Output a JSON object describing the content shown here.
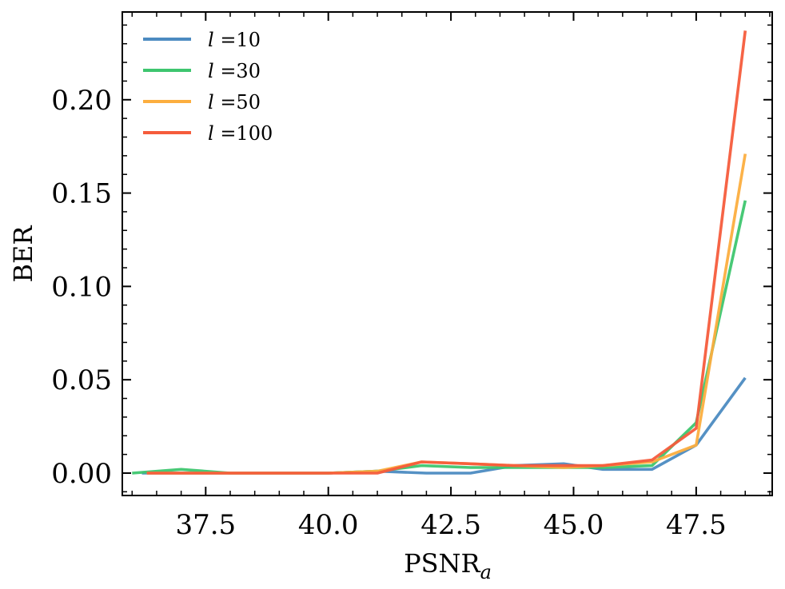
{
  "chart_data": {
    "type": "line",
    "xlabel_base": "PSNR",
    "xlabel_sub": "a",
    "ylabel": "BER",
    "xlim": [
      35.8,
      49.05
    ],
    "ylim": [
      -0.012,
      0.247
    ],
    "xticks": [
      37.5,
      40.0,
      42.5,
      45.0,
      47.5
    ],
    "xtick_labels": [
      "37.5",
      "40.0",
      "42.5",
      "45.0",
      "47.5"
    ],
    "yticks": [
      0.0,
      0.05,
      0.1,
      0.15,
      0.2
    ],
    "ytick_labels": [
      "0.00",
      "0.05",
      "0.10",
      "0.15",
      "0.20"
    ],
    "legend_position": "upper-left",
    "grid": false,
    "series": [
      {
        "name": "l =10",
        "name_var": "l",
        "name_rest": " =10",
        "color": "#4c8bc1",
        "x": [
          36.2,
          37.0,
          38.0,
          39.0,
          40.0,
          41.0,
          42.0,
          42.9,
          43.8,
          44.8,
          45.6,
          46.6,
          47.5,
          48.5
        ],
        "y": [
          0.0,
          0.0,
          0.0,
          0.0,
          0.0,
          0.001,
          0.0,
          0.0,
          0.004,
          0.005,
          0.002,
          0.002,
          0.015,
          0.051
        ]
      },
      {
        "name": "l =30",
        "name_var": "l",
        "name_rest": " =30",
        "color": "#3ec66f",
        "x": [
          36.0,
          37.0,
          38.0,
          39.0,
          40.0,
          41.0,
          41.9,
          42.9,
          43.8,
          44.8,
          45.6,
          46.6,
          47.5,
          48.5
        ],
        "y": [
          0.0,
          0.002,
          0.0,
          0.0,
          0.0,
          0.001,
          0.004,
          0.003,
          0.003,
          0.003,
          0.003,
          0.004,
          0.027,
          0.146
        ]
      },
      {
        "name": "l =50",
        "name_var": "l",
        "name_rest": " =50",
        "color": "#fcae3f",
        "x": [
          36.3,
          37.0,
          38.0,
          39.0,
          40.0,
          41.0,
          41.9,
          42.9,
          43.8,
          44.8,
          45.6,
          46.6,
          47.5,
          48.5
        ],
        "y": [
          0.0,
          0.0,
          0.0,
          0.0,
          0.0,
          0.001,
          0.006,
          0.005,
          0.004,
          0.003,
          0.004,
          0.006,
          0.015,
          0.171
        ]
      },
      {
        "name": "l =100",
        "name_var": "l",
        "name_rest": " =100",
        "color": "#f55c3c",
        "x": [
          36.3,
          37.0,
          38.0,
          39.0,
          40.0,
          41.0,
          41.9,
          42.9,
          43.8,
          44.8,
          45.6,
          46.6,
          47.5,
          48.5
        ],
        "y": [
          0.0,
          0.0,
          0.0,
          0.0,
          0.0,
          0.0,
          0.006,
          0.005,
          0.004,
          0.004,
          0.004,
          0.007,
          0.024,
          0.237
        ]
      }
    ]
  }
}
